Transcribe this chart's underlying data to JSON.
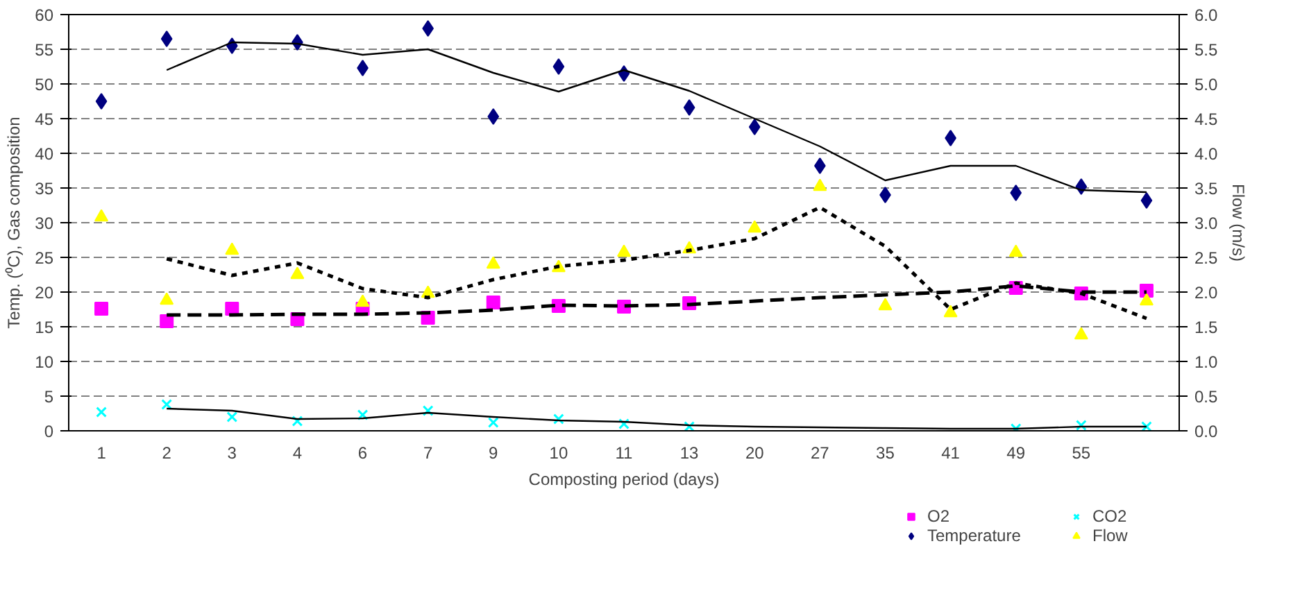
{
  "chart_data": {
    "type": "scatter",
    "xlabel": "Composting period (days)",
    "ylabel": "Temp. (⁰C), Gas composition",
    "y2label": "Flow (m/s)",
    "categories": [
      "1",
      "2",
      "3",
      "4",
      "6",
      "7",
      "9",
      "10",
      "11",
      "13",
      "20",
      "27",
      "35",
      "41",
      "49",
      "55",
      null
    ],
    "ylim": [
      0,
      60
    ],
    "yticks": [
      0,
      5,
      10,
      15,
      20,
      25,
      30,
      35,
      40,
      45,
      50,
      55,
      60
    ],
    "y2lim": [
      0,
      6
    ],
    "y2ticks": [
      {
        "value": 0,
        "label": "0.0"
      },
      {
        "value": 0.5,
        "label": "0.5"
      },
      {
        "value": 1,
        "label": "1.0"
      },
      {
        "value": 1.5,
        "label": "1.5"
      },
      {
        "value": 2,
        "label": "2.0"
      },
      {
        "value": 2.5,
        "label": "2.5"
      },
      {
        "value": 3,
        "label": "3.0"
      },
      {
        "value": 3.5,
        "label": "3.5"
      },
      {
        "value": 4,
        "label": "4.0"
      },
      {
        "value": 4.5,
        "label": "4.5"
      },
      {
        "value": 5,
        "label": "5.0"
      },
      {
        "value": 5.5,
        "label": "5.5"
      },
      {
        "value": 6,
        "label": "6.0"
      }
    ],
    "grid": "y",
    "legend": "bottom right",
    "series": [
      {
        "name": "O2",
        "marker": "square",
        "color": "#ff00ff",
        "values": [
          17.6,
          15.8,
          17.6,
          16.1,
          17.6,
          16.3,
          18.5,
          18.0,
          17.9,
          18.4,
          null,
          null,
          null,
          null,
          20.6,
          19.8,
          20.2
        ]
      },
      {
        "name": "Temperature",
        "marker": "diamond",
        "color": "#000080",
        "values": [
          47.5,
          56.5,
          55.5,
          56.0,
          52.3,
          58.0,
          45.3,
          52.5,
          51.5,
          46.6,
          43.8,
          38.2,
          34.0,
          42.2,
          34.3,
          35.2,
          33.2
        ]
      },
      {
        "name": "CO2",
        "marker": "cross",
        "color": "#00ffff",
        "values": [
          2.7,
          3.8,
          2.0,
          1.4,
          2.3,
          2.9,
          1.2,
          1.7,
          1.0,
          0.6,
          null,
          null,
          null,
          null,
          0.3,
          0.8,
          0.6
        ]
      },
      {
        "name": "Flow",
        "marker": "triangle",
        "color": "#ffff00",
        "axis": "y2",
        "values": [
          3.08,
          1.88,
          2.6,
          2.25,
          1.85,
          1.98,
          2.4,
          2.35,
          2.57,
          2.62,
          2.92,
          3.52,
          1.8,
          1.7,
          2.57,
          1.38,
          1.87
        ]
      },
      {
        "type": "line",
        "color": "#000000",
        "line_style": "solid",
        "values": [
          null,
          52.0,
          56.0,
          55.8,
          54.2,
          55.0,
          51.6,
          48.9,
          52.0,
          49.0,
          45.0,
          41.0,
          36.1,
          38.2,
          38.2,
          34.7,
          34.4
        ]
      },
      {
        "type": "line",
        "color": "#000000",
        "line_style": "dotted",
        "axis": "y2",
        "values": [
          null,
          2.48,
          2.24,
          2.42,
          2.05,
          1.92,
          2.18,
          2.37,
          2.46,
          2.6,
          2.77,
          3.22,
          2.66,
          1.75,
          2.13,
          1.98,
          1.62
        ]
      },
      {
        "type": "line",
        "color": "#000000",
        "line_style": "dashed",
        "values": [
          null,
          16.7,
          16.7,
          16.8,
          16.8,
          17.0,
          17.4,
          18.1,
          18.0,
          18.2,
          18.7,
          19.2,
          19.6,
          20.0,
          20.9,
          20.0,
          20.0
        ]
      },
      {
        "type": "line",
        "color": "#000000",
        "line_style": "solid",
        "values": [
          null,
          3.2,
          2.9,
          1.7,
          1.8,
          2.6,
          2.0,
          1.5,
          1.3,
          0.8,
          0.6,
          0.5,
          0.4,
          0.3,
          0.3,
          0.6,
          0.6
        ]
      }
    ]
  }
}
